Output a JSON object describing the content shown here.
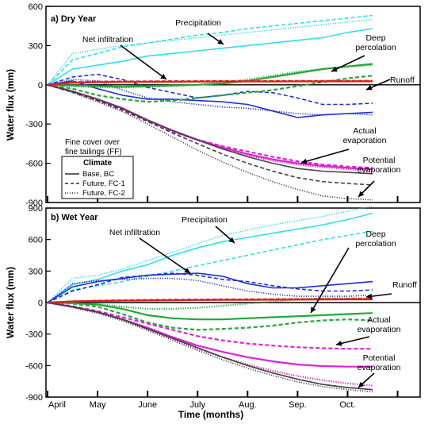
{
  "figure": {
    "xlabel": "Time (months)",
    "ylabel": "Water flux (mm)",
    "month_labels": [
      "April",
      "May",
      "June",
      "July",
      "Aug.",
      "Sep.",
      "Oct."
    ]
  },
  "legend": {
    "subtitle_lines": [
      "Fine cover over",
      "fine tailings (FF)"
    ],
    "title": "Climate",
    "entries": [
      {
        "label": "Base, BC",
        "dash": "solid"
      },
      {
        "label": "Future, FC-1",
        "dash": "dashed"
      },
      {
        "label": "Future, FC-2",
        "dash": "dotted"
      }
    ]
  },
  "colors": {
    "precipitation": "#2ee0e6",
    "net_infiltration": "#1c2fd6",
    "runoff": "#e0201c",
    "deep_percolation": "#22a838",
    "actual_evaporation": "#e020d6",
    "potential_evaporation": "#444444"
  },
  "chart_data": [
    {
      "type": "line",
      "panel_title": "a) Dry Year",
      "xlabel": "",
      "ylabel": "Water flux (mm)",
      "ylim": [
        -900,
        600
      ],
      "yticks": [
        600,
        300,
        0,
        -300,
        -600,
        -900
      ],
      "x_months": [
        0,
        0.5,
        1,
        1.5,
        2,
        2.5,
        3,
        3.5,
        4,
        4.5,
        5,
        5.5,
        6,
        6.5
      ],
      "annotations": [
        "Precipitation",
        "Net infiltration",
        "Deep percolation",
        "Runoff",
        "Actual evaporation",
        "Potential evaporation"
      ],
      "series": [
        {
          "name": "Precipitation",
          "scenario": "Base, BC",
          "values": [
            0,
            120,
            150,
            180,
            220,
            240,
            260,
            280,
            300,
            320,
            340,
            360,
            400,
            430
          ]
        },
        {
          "name": "Precipitation",
          "scenario": "Future, FC-1",
          "values": [
            0,
            190,
            240,
            290,
            320,
            350,
            380,
            400,
            430,
            450,
            470,
            490,
            510,
            530
          ]
        },
        {
          "name": "Precipitation",
          "scenario": "Future, FC-2",
          "values": [
            0,
            240,
            270,
            300,
            320,
            340,
            360,
            380,
            400,
            420,
            440,
            460,
            480,
            500
          ]
        },
        {
          "name": "Net infiltration",
          "scenario": "Base, BC",
          "values": [
            0,
            30,
            -30,
            -80,
            -110,
            -110,
            -120,
            -130,
            -150,
            -200,
            -250,
            -230,
            -220,
            -210
          ]
        },
        {
          "name": "Net infiltration",
          "scenario": "Future, FC-1",
          "values": [
            0,
            60,
            80,
            40,
            -20,
            -60,
            -100,
            -80,
            -50,
            -60,
            -100,
            -150,
            -150,
            -140
          ]
        },
        {
          "name": "Net infiltration",
          "scenario": "Future, FC-2",
          "values": [
            0,
            40,
            30,
            -40,
            -100,
            -130,
            -150,
            -170,
            -180,
            -200,
            -220,
            -230,
            -220,
            -230
          ]
        },
        {
          "name": "Deep percolation",
          "scenario": "Base, BC",
          "values": [
            0,
            -5,
            -10,
            -15,
            -10,
            -5,
            0,
            10,
            30,
            60,
            90,
            120,
            140,
            160
          ]
        },
        {
          "name": "Deep percolation",
          "scenario": "Future, FC-1",
          "values": [
            0,
            -30,
            -80,
            -110,
            -130,
            -120,
            -100,
            -80,
            -60,
            -40,
            -10,
            20,
            50,
            70
          ]
        },
        {
          "name": "Deep percolation",
          "scenario": "Future, FC-2",
          "values": [
            0,
            -10,
            -20,
            -20,
            -15,
            -10,
            0,
            20,
            40,
            70,
            100,
            120,
            140,
            150
          ]
        },
        {
          "name": "Runoff",
          "scenario": "Base, BC",
          "values": [
            0,
            15,
            20,
            22,
            22,
            23,
            24,
            25,
            25,
            25,
            26,
            26,
            26,
            27
          ]
        },
        {
          "name": "Runoff",
          "scenario": "Future, FC-1",
          "values": [
            0,
            20,
            25,
            26,
            27,
            28,
            28,
            29,
            29,
            30,
            30,
            30,
            31,
            31
          ]
        },
        {
          "name": "Runoff",
          "scenario": "Future, FC-2",
          "values": [
            0,
            18,
            22,
            24,
            25,
            26,
            27,
            27,
            28,
            28,
            28,
            29,
            29,
            29
          ]
        },
        {
          "name": "Actual evaporation",
          "scenario": "Base, BC",
          "values": [
            0,
            -50,
            -110,
            -180,
            -270,
            -350,
            -420,
            -480,
            -530,
            -570,
            -600,
            -620,
            -635,
            -645
          ]
        },
        {
          "name": "Actual evaporation",
          "scenario": "Future, FC-1",
          "values": [
            0,
            -55,
            -120,
            -195,
            -280,
            -360,
            -420,
            -470,
            -510,
            -550,
            -585,
            -610,
            -625,
            -635
          ]
        },
        {
          "name": "Actual evaporation",
          "scenario": "Future, FC-2",
          "values": [
            0,
            -50,
            -115,
            -185,
            -275,
            -355,
            -425,
            -490,
            -540,
            -580,
            -610,
            -630,
            -645,
            -655
          ]
        },
        {
          "name": "Potential evaporation",
          "scenario": "Base, BC",
          "values": [
            0,
            -50,
            -110,
            -180,
            -270,
            -350,
            -420,
            -490,
            -550,
            -600,
            -640,
            -660,
            -670,
            -680
          ]
        },
        {
          "name": "Potential evaporation",
          "scenario": "Future, FC-1",
          "values": [
            0,
            -55,
            -120,
            -190,
            -280,
            -370,
            -450,
            -530,
            -600,
            -660,
            -710,
            -740,
            -755,
            -765
          ]
        },
        {
          "name": "Potential evaporation",
          "scenario": "Future, FC-2",
          "values": [
            0,
            -60,
            -130,
            -205,
            -300,
            -400,
            -500,
            -590,
            -670,
            -740,
            -800,
            -850,
            -870,
            -880
          ]
        }
      ]
    },
    {
      "type": "line",
      "panel_title": "b) Wet Year",
      "xlabel": "Time (months)",
      "ylabel": "Water flux (mm)",
      "ylim": [
        -900,
        900
      ],
      "yticks": [
        900,
        600,
        300,
        0,
        -300,
        -600,
        -900
      ],
      "x_months": [
        0,
        0.5,
        1,
        1.5,
        2,
        2.5,
        3,
        3.5,
        4,
        4.5,
        5,
        5.5,
        6,
        6.5
      ],
      "annotations": [
        "Precipitation",
        "Net infiltration",
        "Deep percolation",
        "Runoff",
        "Actual evaporation",
        "Potential evaporation"
      ],
      "series": [
        {
          "name": "Precipitation",
          "scenario": "Base, BC",
          "values": [
            0,
            170,
            220,
            300,
            360,
            450,
            520,
            580,
            620,
            660,
            700,
            740,
            790,
            850
          ]
        },
        {
          "name": "Precipitation",
          "scenario": "Future, FC-1",
          "values": [
            0,
            120,
            160,
            200,
            250,
            300,
            350,
            400,
            450,
            500,
            550,
            600,
            640,
            680
          ]
        },
        {
          "name": "Precipitation",
          "scenario": "Future, FC-2",
          "values": [
            0,
            230,
            260,
            320,
            400,
            480,
            560,
            640,
            690,
            740,
            780,
            820,
            870,
            920
          ]
        },
        {
          "name": "Net infiltration",
          "scenario": "Base, BC",
          "values": [
            0,
            150,
            200,
            230,
            260,
            270,
            280,
            250,
            180,
            140,
            140,
            160,
            180,
            200
          ]
        },
        {
          "name": "Net infiltration",
          "scenario": "Future, FC-1",
          "values": [
            0,
            110,
            170,
            240,
            260,
            280,
            260,
            220,
            200,
            160,
            130,
            110,
            110,
            120
          ]
        },
        {
          "name": "Net infiltration",
          "scenario": "Future, FC-2",
          "values": [
            0,
            180,
            210,
            220,
            230,
            230,
            210,
            160,
            110,
            80,
            60,
            60,
            60,
            70
          ]
        },
        {
          "name": "Deep percolation",
          "scenario": "Base, BC",
          "values": [
            0,
            -5,
            -20,
            -60,
            -120,
            -150,
            -160,
            -160,
            -150,
            -140,
            -130,
            -120,
            -110,
            -100
          ]
        },
        {
          "name": "Deep percolation",
          "scenario": "Future, FC-1",
          "values": [
            0,
            -10,
            -40,
            -110,
            -190,
            -240,
            -260,
            -250,
            -240,
            -220,
            -190,
            -170,
            -160,
            -170
          ]
        },
        {
          "name": "Deep percolation",
          "scenario": "Future, FC-2",
          "values": [
            0,
            -5,
            -15,
            -40,
            -60,
            -60,
            -50,
            -30,
            -10,
            10,
            30,
            40,
            40,
            40
          ]
        },
        {
          "name": "Runoff",
          "scenario": "Base, BC",
          "values": [
            0,
            10,
            15,
            18,
            20,
            22,
            24,
            25,
            26,
            27,
            28,
            29,
            30,
            30
          ]
        },
        {
          "name": "Runoff",
          "scenario": "Future, FC-1",
          "values": [
            0,
            12,
            18,
            22,
            25,
            27,
            29,
            30,
            31,
            32,
            33,
            34,
            35,
            35
          ]
        },
        {
          "name": "Runoff",
          "scenario": "Future, FC-2",
          "values": [
            0,
            11,
            16,
            20,
            22,
            24,
            26,
            27,
            28,
            29,
            30,
            31,
            32,
            32
          ]
        },
        {
          "name": "Actual evaporation",
          "scenario": "Base, BC",
          "values": [
            0,
            -40,
            -90,
            -160,
            -240,
            -330,
            -410,
            -470,
            -520,
            -560,
            -590,
            -605,
            -610,
            -610
          ]
        },
        {
          "name": "Actual evaporation",
          "scenario": "Future, FC-1",
          "values": [
            0,
            -35,
            -80,
            -140,
            -200,
            -260,
            -320,
            -360,
            -390,
            -410,
            -425,
            -435,
            -440,
            -440
          ]
        },
        {
          "name": "Actual evaporation",
          "scenario": "Future, FC-2",
          "values": [
            0,
            -45,
            -100,
            -170,
            -260,
            -350,
            -440,
            -520,
            -590,
            -650,
            -700,
            -740,
            -770,
            -790
          ]
        },
        {
          "name": "Potential evaporation",
          "scenario": "Base, BC",
          "values": [
            0,
            -40,
            -90,
            -160,
            -250,
            -340,
            -430,
            -520,
            -600,
            -670,
            -730,
            -780,
            -810,
            -830
          ]
        },
        {
          "name": "Potential evaporation",
          "scenario": "Future, FC-1",
          "values": [
            0,
            -40,
            -90,
            -160,
            -250,
            -340,
            -430,
            -520,
            -600,
            -670,
            -730,
            -780,
            -810,
            -830
          ]
        },
        {
          "name": "Potential evaporation",
          "scenario": "Future, FC-2",
          "values": [
            0,
            -45,
            -100,
            -175,
            -265,
            -360,
            -455,
            -545,
            -625,
            -695,
            -755,
            -800,
            -830,
            -850
          ]
        }
      ]
    }
  ]
}
